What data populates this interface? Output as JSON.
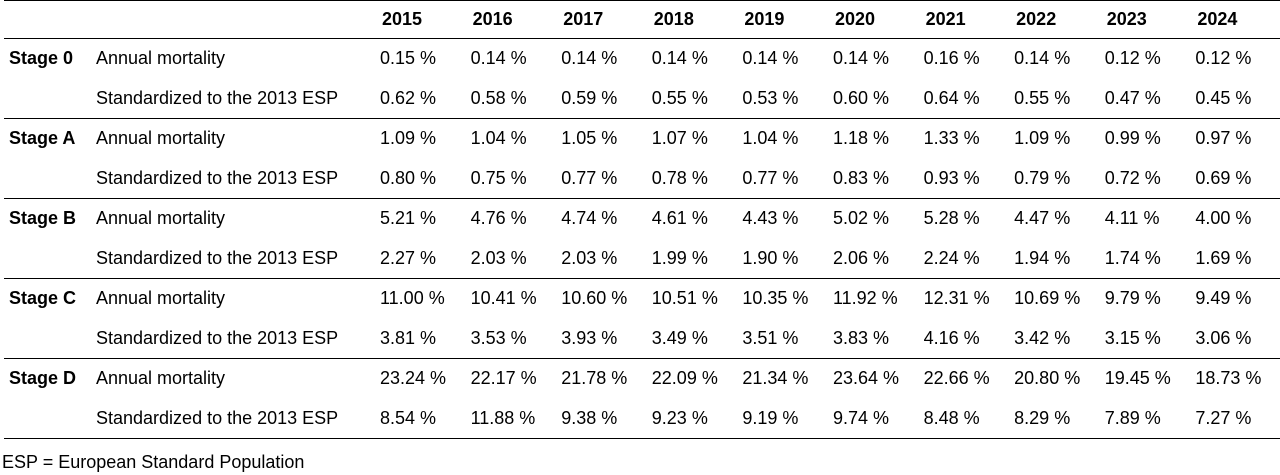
{
  "header": {
    "stage": "",
    "measure": "",
    "years": [
      "2015",
      "2016",
      "2017",
      "2018",
      "2019",
      "2020",
      "2021",
      "2022",
      "2023",
      "2024"
    ]
  },
  "groups": [
    {
      "stage": "Stage 0",
      "rows": [
        {
          "measure": "Annual mortality",
          "values": [
            "0.15 %",
            "0.14 %",
            "0.14 %",
            "0.14 %",
            "0.14 %",
            "0.14 %",
            "0.16 %",
            "0.14 %",
            "0.12 %",
            "0.12 %"
          ]
        },
        {
          "measure": "Standardized to the 2013 ESP",
          "values": [
            "0.62 %",
            "0.58 %",
            "0.59 %",
            "0.55 %",
            "0.53 %",
            "0.60 %",
            "0.64 %",
            "0.55 %",
            "0.47 %",
            "0.45 %"
          ]
        }
      ]
    },
    {
      "stage": "Stage A",
      "rows": [
        {
          "measure": "Annual mortality",
          "values": [
            "1.09 %",
            "1.04 %",
            "1.05 %",
            "1.07 %",
            "1.04 %",
            "1.18 %",
            "1.33 %",
            "1.09 %",
            "0.99 %",
            "0.97 %"
          ]
        },
        {
          "measure": "Standardized to the 2013 ESP",
          "values": [
            "0.80 %",
            "0.75 %",
            "0.77 %",
            "0.78 %",
            "0.77 %",
            "0.83 %",
            "0.93 %",
            "0.79 %",
            "0.72 %",
            "0.69 %"
          ]
        }
      ]
    },
    {
      "stage": "Stage B",
      "rows": [
        {
          "measure": "Annual mortality",
          "values": [
            "5.21 %",
            "4.76 %",
            "4.74 %",
            "4.61 %",
            "4.43 %",
            "5.02 %",
            "5.28 %",
            "4.47 %",
            "4.11 %",
            "4.00 %"
          ]
        },
        {
          "measure": "Standardized to the 2013 ESP",
          "values": [
            "2.27 %",
            "2.03 %",
            "2.03 %",
            "1.99 %",
            "1.90 %",
            "2.06 %",
            "2.24 %",
            "1.94 %",
            "1.74 %",
            "1.69 %"
          ]
        }
      ]
    },
    {
      "stage": "Stage C",
      "rows": [
        {
          "measure": "Annual mortality",
          "values": [
            "11.00 %",
            "10.41 %",
            "10.60 %",
            "10.51 %",
            "10.35 %",
            "11.92 %",
            "12.31 %",
            "10.69 %",
            "9.79 %",
            "9.49 %"
          ]
        },
        {
          "measure": "Standardized to the 2013 ESP",
          "values": [
            "3.81 %",
            "3.53 %",
            "3.93 %",
            "3.49 %",
            "3.51 %",
            "3.83 %",
            "4.16 %",
            "3.42 %",
            "3.15 %",
            "3.06 %"
          ]
        }
      ]
    },
    {
      "stage": "Stage D",
      "rows": [
        {
          "measure": "Annual mortality",
          "values": [
            "23.24 %",
            "22.17 %",
            "21.78 %",
            "22.09 %",
            "21.34 %",
            "23.64 %",
            "22.66 %",
            "20.80 %",
            "19.45 %",
            "18.73 %"
          ]
        },
        {
          "measure": "Standardized to the 2013 ESP",
          "values": [
            "8.54 %",
            "11.88 %",
            "9.38 %",
            "9.23 %",
            "9.19 %",
            "9.74 %",
            "8.48 %",
            "8.29 %",
            "7.89 %",
            "7.27 %"
          ]
        }
      ]
    }
  ],
  "footnote": "ESP = European Standard Population"
}
